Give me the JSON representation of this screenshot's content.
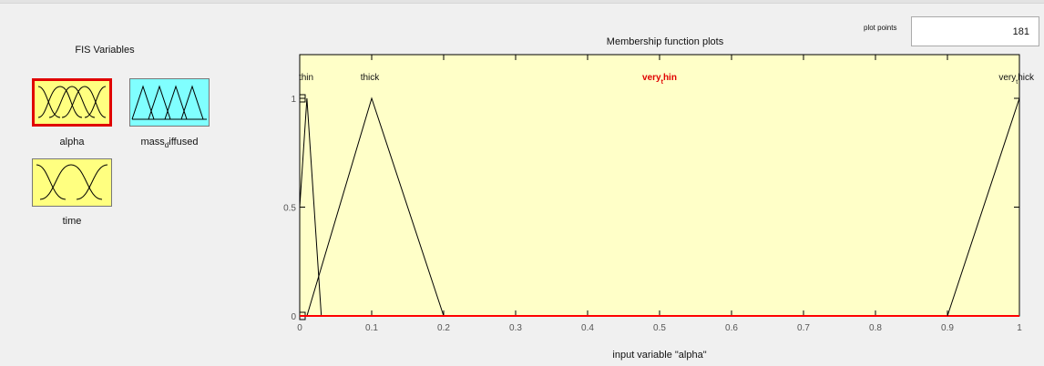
{
  "fis_variables": {
    "title": "FIS Variables",
    "items": [
      {
        "label": "alpha",
        "selected": true,
        "color": "#ffff80"
      },
      {
        "label_main": "mass",
        "label_sub": "d",
        "label_rest": "iffused",
        "color": "#80ffff"
      },
      {
        "label": "time",
        "color": "#ffff80"
      }
    ]
  },
  "plot_points": {
    "label": "plot points",
    "value": "181"
  },
  "membership_plot": {
    "title": "Membership function plots",
    "xlabel": "input variable \"alpha\"",
    "highlight_color": "#ff0000",
    "background": "#ffffc8"
  },
  "chart_data": {
    "type": "line",
    "title": "Membership function plots",
    "xlabel": "input variable \"alpha\"",
    "ylabel": "",
    "xlim": [
      0,
      1
    ],
    "ylim": [
      0,
      1
    ],
    "xticks": [
      "0",
      "0.1",
      "0.2",
      "0.3",
      "0.4",
      "0.5",
      "0.6",
      "0.7",
      "0.8",
      "0.9",
      "1"
    ],
    "yticks": [
      "0",
      "0.5",
      "1"
    ],
    "series": [
      {
        "name": "thin",
        "label_main": "thin",
        "label_sub": "",
        "label_rest": "",
        "x": [
          0,
          0.01,
          0.02,
          0.03
        ],
        "y": [
          0.5,
          1,
          0.5,
          0
        ],
        "color": "#000000"
      },
      {
        "name": "thick",
        "label_main": "thick",
        "label_sub": "",
        "label_rest": "",
        "x": [
          0.01,
          0.1,
          0.2
        ],
        "y": [
          0,
          1,
          0
        ],
        "color": "#000000"
      },
      {
        "name": "very_thin",
        "label_main": "very",
        "label_sub": "t",
        "label_rest": "hin",
        "x": [
          0,
          1
        ],
        "y": [
          0,
          0
        ],
        "color": "#ff0000",
        "selected": true
      },
      {
        "name": "very_thick",
        "label_main": "very",
        "label_sub": "t",
        "label_rest": "hick",
        "x": [
          0.9,
          1
        ],
        "y": [
          0,
          1
        ],
        "color": "#000000"
      }
    ]
  }
}
